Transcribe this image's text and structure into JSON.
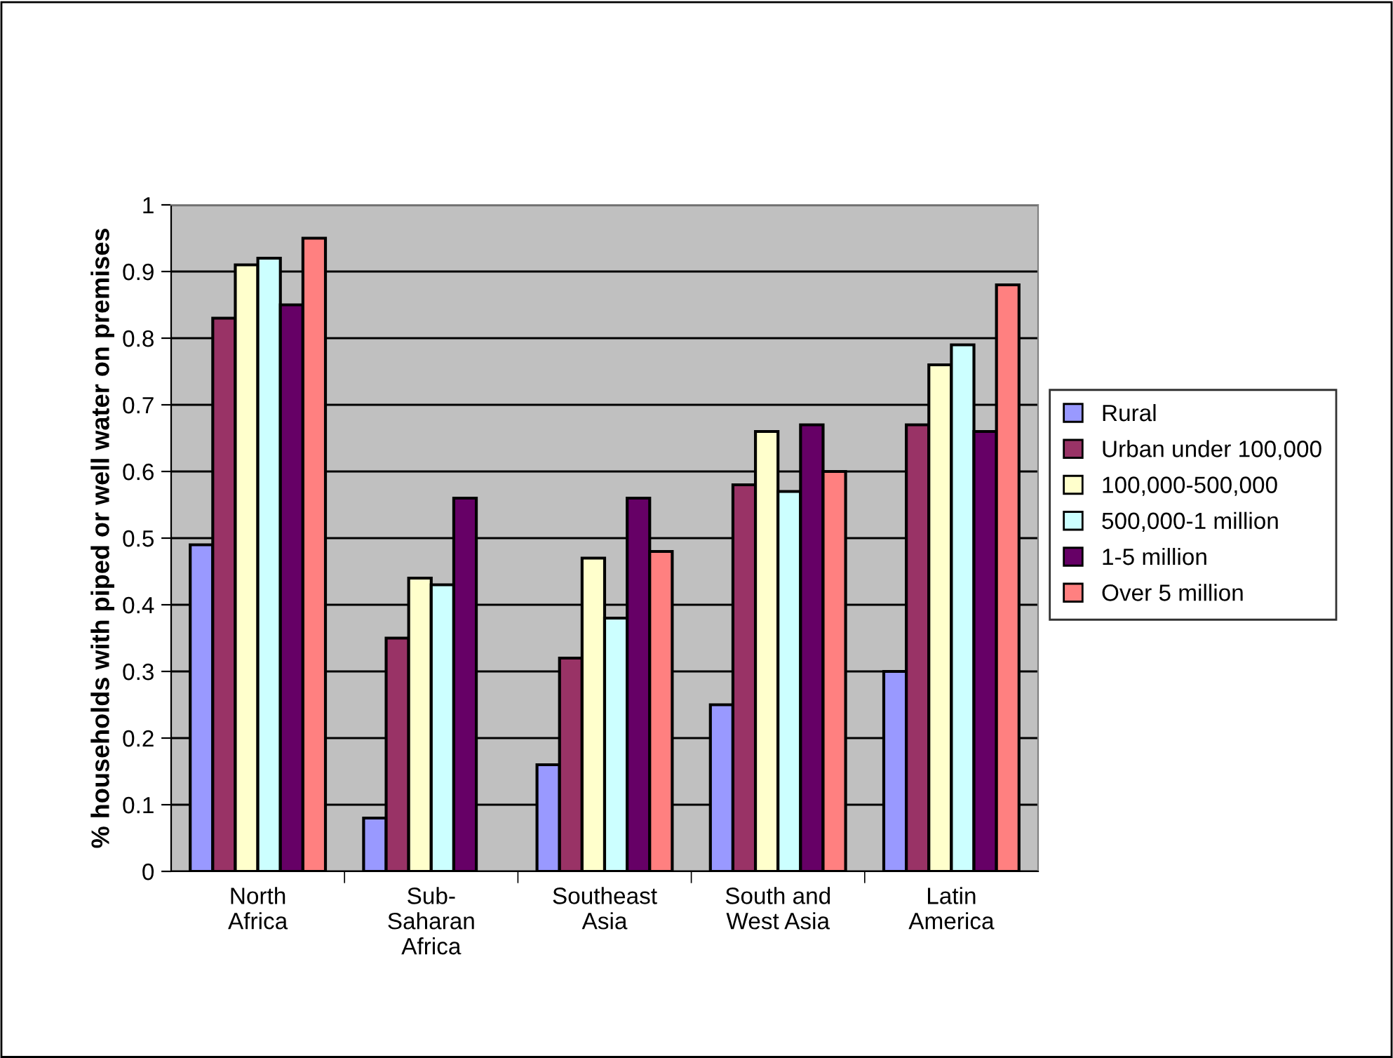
{
  "chart_data": {
    "type": "bar",
    "ylabel": "% households with piped or well water on premises",
    "categories": [
      "North\nAfrica",
      "Sub-\nSaharan\nAfrica",
      "Southeast\nAsia",
      "South and\nWest Asia",
      "Latin\nAmerica"
    ],
    "series": [
      {
        "name": "Rural",
        "color": "#9999ff",
        "values": [
          0.49,
          0.08,
          0.16,
          0.25,
          0.3
        ]
      },
      {
        "name": "Urban under 100,000",
        "color": "#993366",
        "values": [
          0.83,
          0.35,
          0.32,
          0.58,
          0.67
        ]
      },
      {
        "name": "100,000-500,000",
        "color": "#ffffcc",
        "values": [
          0.91,
          0.44,
          0.47,
          0.66,
          0.76
        ]
      },
      {
        "name": "500,000-1 million",
        "color": "#ccffff",
        "values": [
          0.92,
          0.43,
          0.38,
          0.57,
          0.79
        ]
      },
      {
        "name": "1-5 million",
        "color": "#660066",
        "values": [
          0.85,
          0.56,
          0.56,
          0.67,
          0.66
        ]
      },
      {
        "name": "Over 5 million",
        "color": "#ff8080",
        "values": [
          0.95,
          null,
          0.48,
          0.6,
          0.88
        ]
      }
    ],
    "ylim": [
      0,
      1
    ],
    "yticks": [
      0,
      0.1,
      0.2,
      0.3,
      0.4,
      0.5,
      0.6,
      0.7,
      0.8,
      0.9,
      1
    ],
    "grid": "y",
    "legend": "right"
  }
}
